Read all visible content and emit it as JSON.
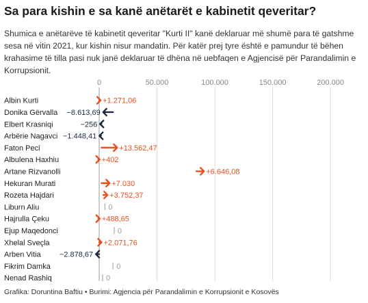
{
  "header": {
    "title": "Sa para kishin e sa kanë anëtarët e kabinetit qeveritar?",
    "subtitle": "Shumica e anëtarëve të kabinetit qeveritar \"Kurti II\" kanë deklaruar më shumë para të gatshme sesa në vitin 2021, kur kishin nisur mandatin. Për katër prej tyre është e pamundur të bëhen krahasime të tilla pasi nuk janë deklaruar të dhëna në uebfaqen e Agjencisë për Parandalimin e Korrupsionit."
  },
  "footer": {
    "credit": "Grafika: Doruntina Baftiu • Burimi: Agjencia për Parandalimin e Korrupsionit e Kosovës"
  },
  "colors": {
    "increase": "#e8501e",
    "decrease": "#1b2a44",
    "none": "#b9b9b9",
    "grid": "#dcdcdc",
    "axis": "#999999"
  },
  "chart_data": {
    "type": "bar",
    "xlim": [
      0,
      210000
    ],
    "xticks": [
      0,
      50000,
      100000,
      150000,
      200000
    ],
    "xtick_labels": [
      "0",
      "50.000",
      "100.000",
      "150.000",
      "200.000"
    ],
    "rows": [
      {
        "name": "Albin Kurti",
        "start": 0,
        "change": 1271.06,
        "label": "+1.271,06"
      },
      {
        "name": "Donika Gërvalla",
        "start": 12000,
        "change": -8613.69,
        "label": "−8.613,69"
      },
      {
        "name": "Elbert Krasniqi",
        "start": 1000,
        "change": -256,
        "label": "−256"
      },
      {
        "name": "Arbërie Nagavci",
        "start": 1600,
        "change": -1448.41,
        "label": "−1.448,41"
      },
      {
        "name": "Faton Peci",
        "start": 2000,
        "change": 13562.47,
        "label": "+13.562,47"
      },
      {
        "name": "Albulena Haxhiu",
        "start": 0,
        "change": 402,
        "label": "+402"
      },
      {
        "name": "Artane Rizvanolli",
        "start": 84000,
        "change": 6646.08,
        "label": "+6.646,08"
      },
      {
        "name": "Hekuran Murati",
        "start": 2000,
        "change": 7030,
        "label": "+7.030"
      },
      {
        "name": "Rozeta Hajdari",
        "start": 3500,
        "change": 3752.37,
        "label": "+3.752,37"
      },
      {
        "name": "Liburn Aliu",
        "start": 2000,
        "change": 0,
        "label": "0"
      },
      {
        "name": "Hajrulla Çeku",
        "start": 0,
        "change": 488.65,
        "label": "+488,65"
      },
      {
        "name": "Ejup Maqedonci",
        "start": 10000,
        "change": 0,
        "label": "0"
      },
      {
        "name": "Xhelal Sveçla",
        "start": 0,
        "change": 2071.76,
        "label": "+2.071,76"
      },
      {
        "name": "Arben Vitia",
        "start": 0,
        "change": -2878.67,
        "label": "−2.878,67"
      },
      {
        "name": "Fikrim Damka",
        "start": 9000,
        "change": 0,
        "label": "0"
      },
      {
        "name": "Nenad Rashiq",
        "start": 0,
        "change": 0,
        "label": "0"
      }
    ]
  }
}
